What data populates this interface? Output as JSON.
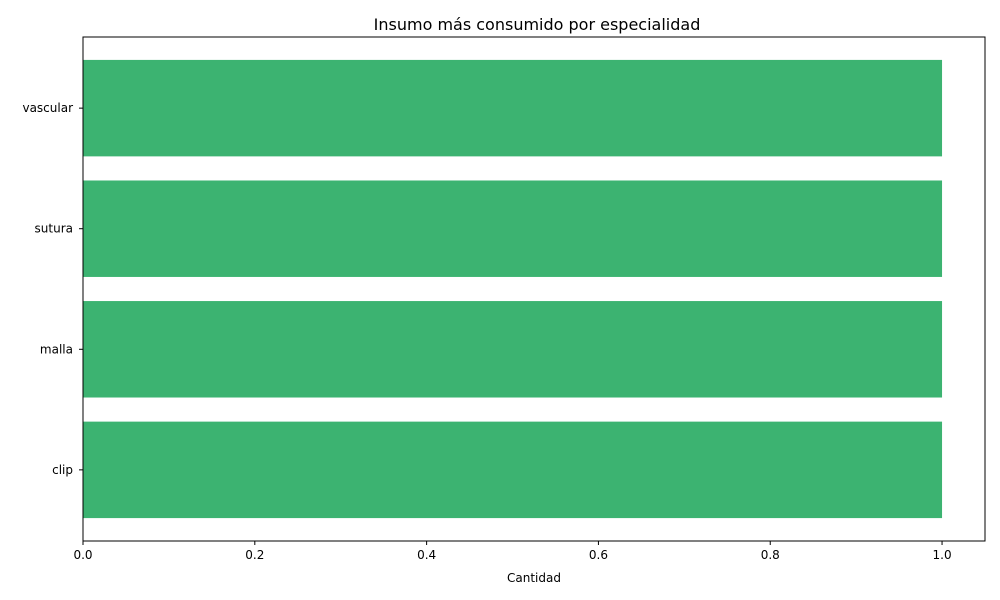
{
  "chart_data": {
    "type": "bar",
    "orientation": "horizontal",
    "title": "Insumo más consumido por especialidad",
    "xlabel": "Cantidad",
    "ylabel": "",
    "categories": [
      "clip",
      "malla",
      "sutura",
      "vascular"
    ],
    "values": [
      1,
      1,
      1,
      1
    ],
    "xlim": [
      0,
      1.05
    ],
    "xticks": [
      "0.0",
      "0.2",
      "0.4",
      "0.6",
      "0.8",
      "1.0"
    ],
    "grid": false,
    "legend": "none",
    "bar_color": "#3cb371"
  }
}
